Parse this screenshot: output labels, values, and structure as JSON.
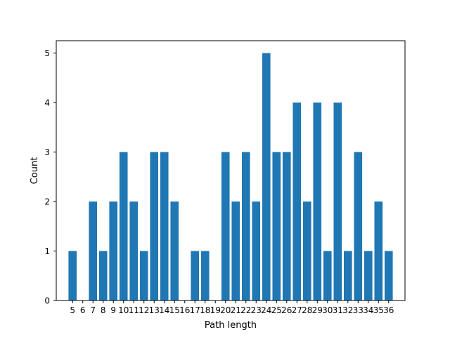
{
  "chart_data": {
    "type": "bar",
    "categories": [
      5,
      6,
      7,
      8,
      9,
      10,
      11,
      12,
      13,
      14,
      15,
      16,
      17,
      18,
      19,
      20,
      21,
      22,
      23,
      24,
      25,
      26,
      27,
      28,
      29,
      30,
      31,
      32,
      33,
      34,
      35,
      36
    ],
    "values": [
      1,
      0,
      2,
      1,
      2,
      3,
      2,
      1,
      3,
      3,
      2,
      0,
      1,
      1,
      0,
      3,
      2,
      3,
      2,
      5,
      3,
      3,
      4,
      2,
      4,
      1,
      4,
      1,
      3,
      1,
      2,
      1
    ],
    "title": "",
    "xlabel": "Path length",
    "ylabel": "Count",
    "ylim": [
      0,
      5.25
    ],
    "yticks": [
      0,
      1,
      2,
      3,
      4,
      5
    ],
    "bar_color": "#1f77b4",
    "grid": false,
    "legend": "none"
  }
}
